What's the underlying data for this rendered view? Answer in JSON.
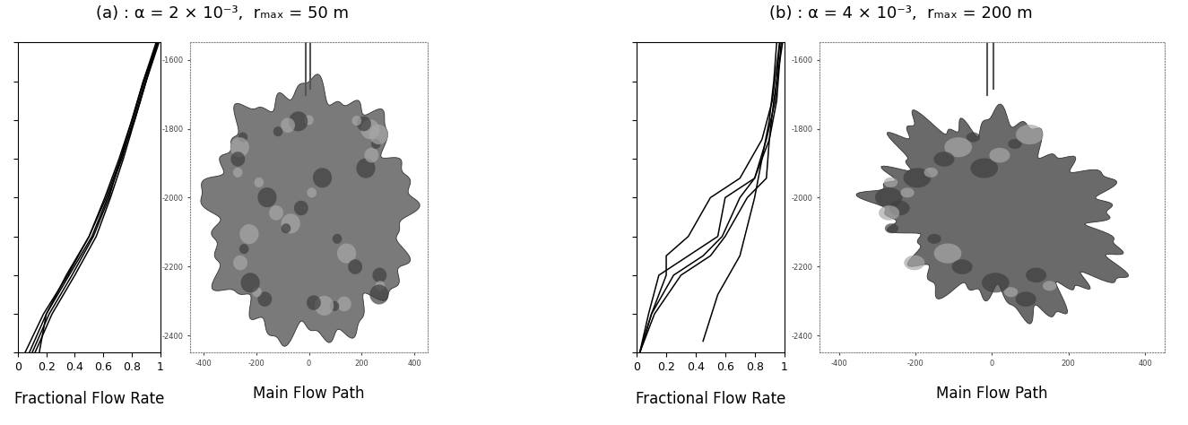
{
  "chart_data": [
    {
      "type": "line",
      "title": "(a) : α = 2 × 10⁻³,  rₘₐₓ = 50 m",
      "xlabel": "Fractional Flow Rate",
      "color": "#000000",
      "xlim": [
        0,
        1
      ],
      "xticks": [
        0,
        0.2,
        0.4,
        0.6,
        0.8,
        1
      ],
      "ylim": [
        -2400,
        -1600
      ],
      "yticks": [
        -2400,
        -2300,
        -2200,
        -2100,
        -2000,
        -1900,
        -1800,
        -1700,
        -1600
      ],
      "tick_labels": "x",
      "series": [
        {
          "x": [
            0.05,
            0.18,
            0.35,
            0.5,
            0.62,
            0.72,
            0.8,
            0.88,
            0.98
          ],
          "y": [
            -2400,
            -2300,
            -2200,
            -2100,
            -2000,
            -1900,
            -1800,
            -1700,
            -1600
          ]
        },
        {
          "x": [
            0.08,
            0.2,
            0.36,
            0.52,
            0.63,
            0.73,
            0.81,
            0.89,
            0.98
          ],
          "y": [
            -2400,
            -2300,
            -2200,
            -2100,
            -2000,
            -1900,
            -1800,
            -1700,
            -1600
          ]
        },
        {
          "x": [
            0.1,
            0.22,
            0.38,
            0.53,
            0.64,
            0.72,
            0.82,
            0.9,
            0.98
          ],
          "y": [
            -2400,
            -2300,
            -2200,
            -2100,
            -2000,
            -1900,
            -1800,
            -1700,
            -1600
          ]
        },
        {
          "x": [
            0.15,
            0.2,
            0.34,
            0.5,
            0.61,
            0.71,
            0.8,
            0.88,
            0.97
          ],
          "y": [
            -2400,
            -2300,
            -2200,
            -2100,
            -2000,
            -1900,
            -1800,
            -1700,
            -1600
          ]
        },
        {
          "x": [
            0.12,
            0.24,
            0.4,
            0.55,
            0.65,
            0.74,
            0.82,
            0.9,
            0.99
          ],
          "y": [
            -2400,
            -2300,
            -2200,
            -2100,
            -2000,
            -1900,
            -1800,
            -1700,
            -1600
          ]
        }
      ]
    },
    {
      "type": "isosurface",
      "xlabel": "Main Flow Path",
      "color": "#7a7a7a",
      "xlim": [
        -450,
        450
      ],
      "xticks": [
        -400,
        -200,
        0,
        200,
        400
      ],
      "ylim": [
        -2450,
        -1550
      ],
      "yticks": [
        -2400,
        -2200,
        -2000,
        -1800,
        -1600
      ]
    },
    {
      "type": "line",
      "title": "(b) : α = 4 × 10⁻³,  rₘₐₓ = 200 m",
      "xlabel": "Fractional Flow Rate",
      "color": "#000000",
      "xlim": [
        0,
        1
      ],
      "xticks": [
        0,
        0.2,
        0.4,
        0.6,
        0.8,
        1
      ],
      "ylim": [
        -2400,
        -1600
      ],
      "yticks": [
        -2400,
        -2300,
        -2200,
        -2100,
        -2000,
        -1900,
        -1800,
        -1700,
        -1600
      ],
      "tick_labels": "x",
      "series": [
        {
          "x": [
            0.02,
            0.1,
            0.2,
            0.2,
            0.35,
            0.5,
            0.7,
            0.85,
            0.92,
            0.97
          ],
          "y": [
            -2400,
            -2300,
            -2200,
            -2150,
            -2100,
            -2000,
            -1950,
            -1850,
            -1750,
            -1600
          ]
        },
        {
          "x": [
            0.02,
            0.08,
            0.15,
            0.35,
            0.55,
            0.6,
            0.8,
            0.9,
            0.95,
            0.98
          ],
          "y": [
            -2400,
            -2300,
            -2200,
            -2150,
            -2100,
            -2000,
            -1950,
            -1850,
            -1750,
            -1600
          ]
        },
        {
          "x": [
            0.02,
            0.12,
            0.3,
            0.5,
            0.6,
            0.75,
            0.88,
            0.9,
            0.93,
            0.99
          ],
          "y": [
            -2400,
            -2300,
            -2200,
            -2150,
            -2100,
            -2000,
            -1950,
            -1850,
            -1750,
            -1600
          ]
        },
        {
          "x": [
            0.02,
            0.1,
            0.25,
            0.45,
            0.58,
            0.7,
            0.8,
            0.88,
            0.94,
            0.97
          ],
          "y": [
            -2400,
            -2300,
            -2200,
            -2150,
            -2100,
            -2000,
            -1950,
            -1850,
            -1750,
            -1600
          ]
        },
        {
          "x": [
            0.45,
            0.55,
            0.7,
            0.8,
            0.85,
            0.9,
            0.93,
            0.95
          ],
          "y": [
            -2370,
            -2250,
            -2150,
            -2000,
            -1900,
            -1800,
            -1700,
            -1600
          ]
        }
      ]
    },
    {
      "type": "isosurface",
      "xlabel": "Main Flow Path",
      "color": "#6a6a6a",
      "xlim": [
        -450,
        450
      ],
      "xticks": [
        -400,
        -200,
        0,
        200,
        400
      ],
      "ylim": [
        -2450,
        -1550
      ],
      "yticks": [
        -2400,
        -2200,
        -2000,
        -1800,
        -1600
      ]
    }
  ]
}
